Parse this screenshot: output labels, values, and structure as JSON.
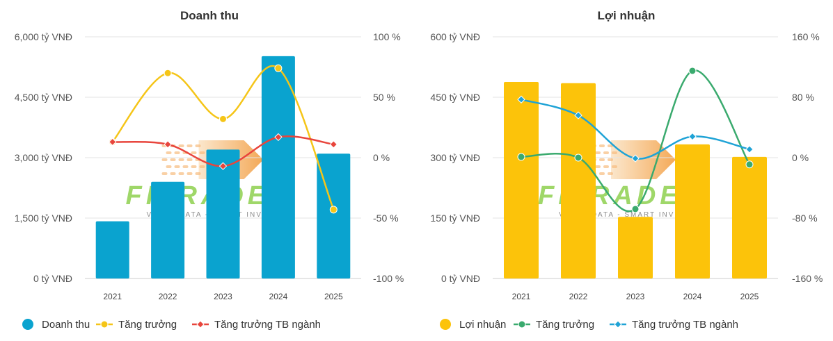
{
  "watermark": {
    "text": "FITRADE",
    "tagline": "VALUE DATA - SMART INVEST"
  },
  "chart_data": [
    {
      "type": "bar",
      "title": "Doanh thu",
      "categories": [
        "2021",
        "2022",
        "2023",
        "2024",
        "2025"
      ],
      "ylim": [
        0,
        6000
      ],
      "y_ticks": [
        0,
        1500,
        3000,
        4500,
        6000
      ],
      "y_tick_labels": [
        "0 tỷ VNĐ",
        "1,500 tỷ VNĐ",
        "3,000 tỷ VNĐ",
        "4,500 tỷ VNĐ",
        "6,000 tỷ VNĐ"
      ],
      "y2lim": [
        -100,
        100
      ],
      "y2_ticks": [
        -100,
        -50,
        0,
        50,
        100
      ],
      "y2_tick_labels": [
        "-100 %",
        "-50 %",
        "0 %",
        "50 %",
        "100 %"
      ],
      "series": [
        {
          "name": "Doanh thu",
          "kind": "bar",
          "axis": "left",
          "color": "#0aa3cf",
          "values": [
            1420,
            2400,
            3200,
            5520,
            3100
          ]
        },
        {
          "name": "Tăng trưởng",
          "kind": "line",
          "axis": "right",
          "color": "#f5c518",
          "marker": "circle",
          "values": [
            13,
            70,
            32,
            74,
            -43
          ]
        },
        {
          "name": "Tăng trưởng TB ngành",
          "kind": "line",
          "axis": "right",
          "color": "#e8453c",
          "marker": "diamond",
          "values": [
            13,
            11,
            -7,
            17,
            11
          ]
        }
      ],
      "legend_position": "bottom-left"
    },
    {
      "type": "bar",
      "title": "Lợi nhuận",
      "categories": [
        "2021",
        "2022",
        "2023",
        "2024",
        "2025"
      ],
      "ylim": [
        0,
        600
      ],
      "y_ticks": [
        0,
        150,
        300,
        450,
        600
      ],
      "y_tick_labels": [
        "0 tỷ VNĐ",
        "150 tỷ VNĐ",
        "300 tỷ VNĐ",
        "450 tỷ VNĐ",
        "600 tỷ VNĐ"
      ],
      "y2lim": [
        -160,
        160
      ],
      "y2_ticks": [
        -160,
        -80,
        0,
        80,
        160
      ],
      "y2_tick_labels": [
        "-160 %",
        "-80 %",
        "0 %",
        "80 %",
        "160 %"
      ],
      "series": [
        {
          "name": "Lợi nhuận",
          "kind": "bar",
          "axis": "left",
          "color": "#fcc30a",
          "values": [
            488,
            485,
            153,
            333,
            302
          ]
        },
        {
          "name": "Tăng trưởng",
          "kind": "line",
          "axis": "right",
          "color": "#3aaa6e",
          "marker": "circle",
          "values": [
            1,
            0,
            -68,
            115,
            -9
          ]
        },
        {
          "name": "Tăng trưởng TB ngành",
          "kind": "line",
          "axis": "right",
          "color": "#1fa3d6",
          "marker": "diamond",
          "values": [
            77,
            56,
            -1,
            28,
            11
          ]
        }
      ],
      "legend_position": "bottom-left"
    }
  ]
}
